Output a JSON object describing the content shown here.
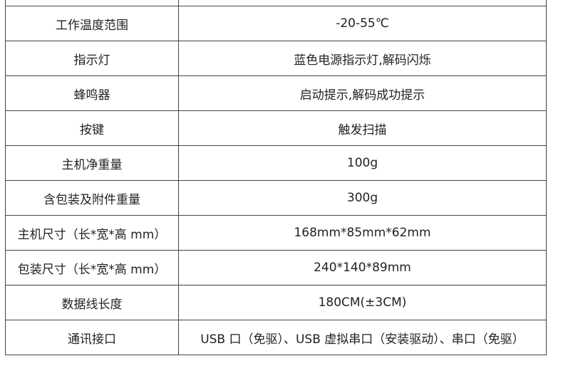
{
  "rows": [
    {
      "label": "",
      "value": ""
    },
    {
      "label": "工作温度范围",
      "value": "-20-55℃"
    },
    {
      "label": "指示灯",
      "value": "蓝色电源指示灯,解码闪烁"
    },
    {
      "label": "蜂鸣器",
      "value": "启动提示,解码成功提示"
    },
    {
      "label": "按键",
      "value": "触发扫描"
    },
    {
      "label": "主机净重量",
      "value": "100g"
    },
    {
      "label": "含包装及附件重量",
      "value": "300g"
    },
    {
      "label": "主机尺寸（长*宽*高 mm）",
      "value": "168mm*85mm*62mm"
    },
    {
      "label": "包装尺寸（长*宽*高 mm）",
      "value": "240*140*89mm"
    },
    {
      "label": "数据线长度",
      "value": "180CM(±3CM)"
    },
    {
      "label": "通讯接口",
      "value": "USB 口（免驱）、USB 虚拟串口（安装驱动）、串口（免驱）"
    }
  ]
}
